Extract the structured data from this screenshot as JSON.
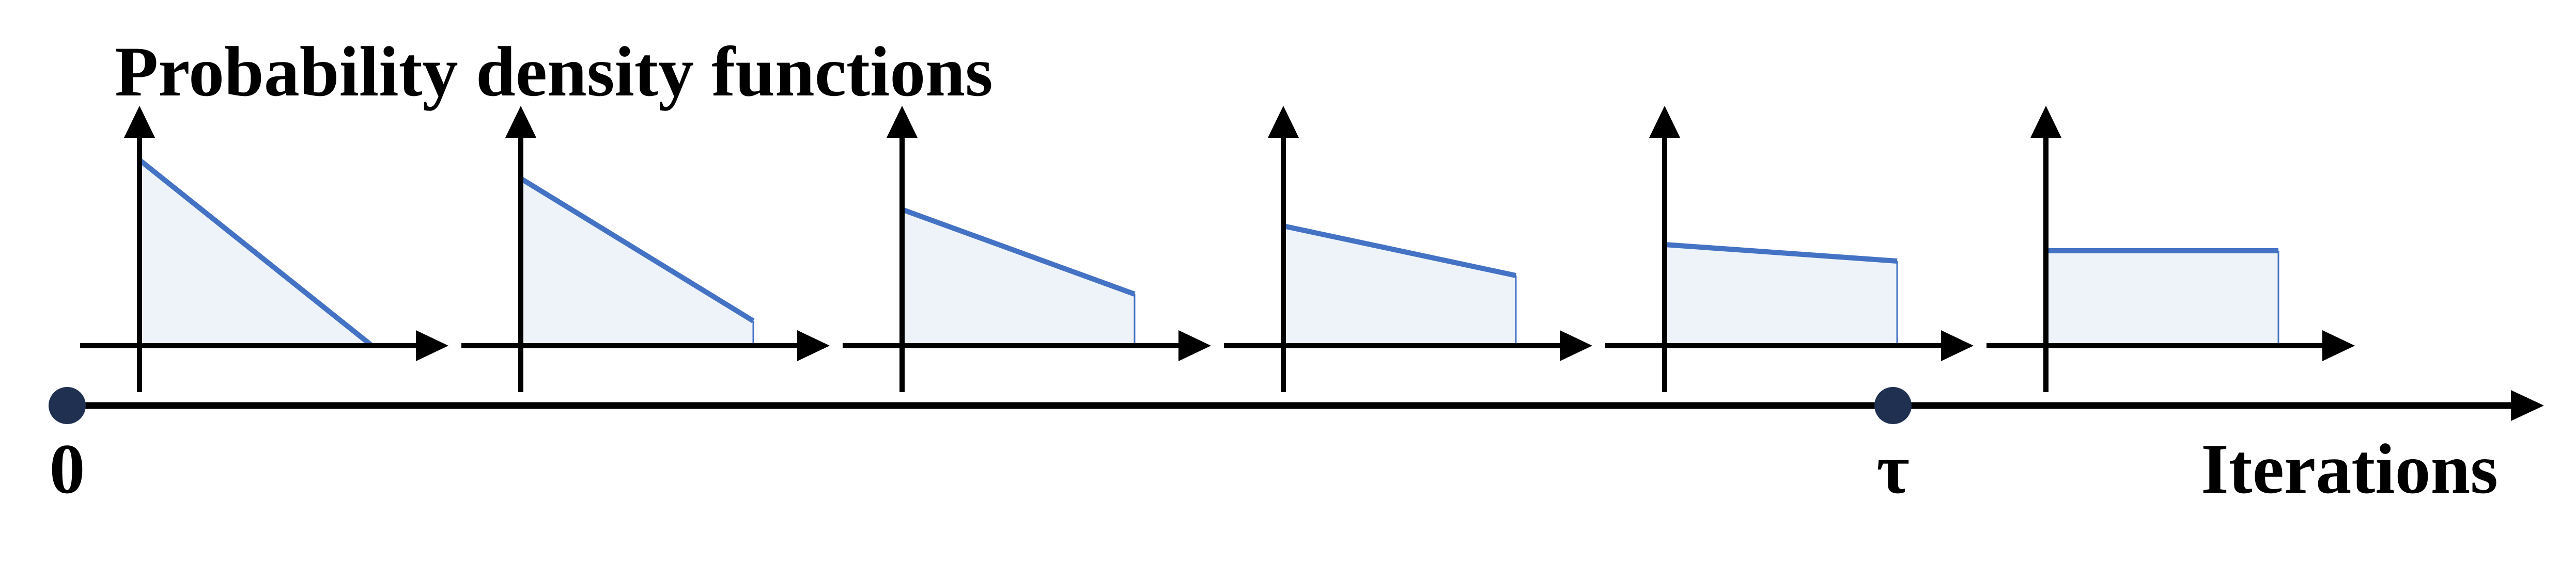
{
  "title": "Probability density functions",
  "timeline": {
    "origin_label": "0",
    "tau_label": "τ",
    "axis_label": "Iterations"
  },
  "colors": {
    "axis": "#000000",
    "density_line": "#4472C4",
    "density_fill": "#EEF3F9",
    "marker": "#1F3050"
  },
  "densities": [
    {
      "start": 0.9,
      "end": 0.0
    },
    {
      "start": 0.81,
      "end": 0.12
    },
    {
      "start": 0.66,
      "end": 0.25
    },
    {
      "start": 0.58,
      "end": 0.34
    },
    {
      "start": 0.49,
      "end": 0.41
    },
    {
      "start": 0.46,
      "end": 0.46
    }
  ]
}
